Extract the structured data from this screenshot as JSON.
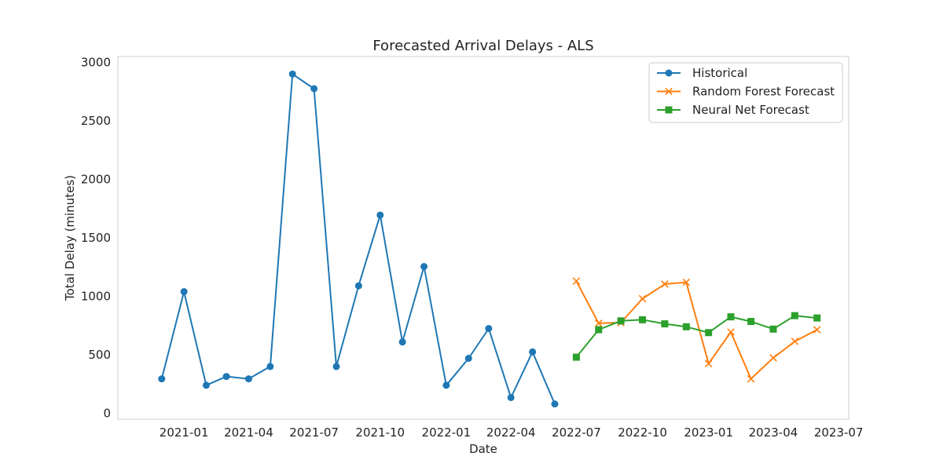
{
  "chart_data": {
    "type": "line",
    "title": "Forecasted Arrival Delays - ALS",
    "xlabel": "Date",
    "ylabel": "Total Delay (minutes)",
    "x_range": [
      "2020-10-01",
      "2023-07-15"
    ],
    "ylim": [
      -50,
      3050
    ],
    "x_ticks": [
      {
        "date": "2021-01-01",
        "label": "2021-01"
      },
      {
        "date": "2021-04-01",
        "label": "2021-04"
      },
      {
        "date": "2021-07-01",
        "label": "2021-07"
      },
      {
        "date": "2021-10-01",
        "label": "2021-10"
      },
      {
        "date": "2022-01-01",
        "label": "2022-01"
      },
      {
        "date": "2022-04-01",
        "label": "2022-04"
      },
      {
        "date": "2022-07-01",
        "label": "2022-07"
      },
      {
        "date": "2022-10-01",
        "label": "2022-10"
      },
      {
        "date": "2023-01-01",
        "label": "2023-01"
      },
      {
        "date": "2023-04-01",
        "label": "2023-04"
      },
      {
        "date": "2023-07-01",
        "label": "2023-07"
      }
    ],
    "y_ticks": [
      0,
      500,
      1000,
      1500,
      2000,
      2500,
      3000
    ],
    "grid": false,
    "legend_position": "top-right",
    "series": [
      {
        "name": "Historical",
        "color": "#1f77b4",
        "marker": "circle",
        "points": [
          {
            "x": "2020-12-01",
            "y": 295
          },
          {
            "x": "2021-01-01",
            "y": 1040
          },
          {
            "x": "2021-02-01",
            "y": 240
          },
          {
            "x": "2021-03-01",
            "y": 315
          },
          {
            "x": "2021-04-01",
            "y": 295
          },
          {
            "x": "2021-05-01",
            "y": 400
          },
          {
            "x": "2021-06-01",
            "y": 2900
          },
          {
            "x": "2021-07-01",
            "y": 2775
          },
          {
            "x": "2021-08-01",
            "y": 400
          },
          {
            "x": "2021-09-01",
            "y": 1090
          },
          {
            "x": "2021-10-01",
            "y": 1695
          },
          {
            "x": "2021-11-01",
            "y": 610
          },
          {
            "x": "2021-12-01",
            "y": 1255
          },
          {
            "x": "2022-01-01",
            "y": 240
          },
          {
            "x": "2022-02-01",
            "y": 470
          },
          {
            "x": "2022-03-01",
            "y": 725
          },
          {
            "x": "2022-04-01",
            "y": 135
          },
          {
            "x": "2022-05-01",
            "y": 525
          },
          {
            "x": "2022-06-01",
            "y": 80
          }
        ]
      },
      {
        "name": "Random Forest Forecast",
        "color": "#ff7f0e",
        "marker": "x",
        "points": [
          {
            "x": "2022-07-01",
            "y": 1130
          },
          {
            "x": "2022-08-01",
            "y": 770
          },
          {
            "x": "2022-09-01",
            "y": 775
          },
          {
            "x": "2022-10-01",
            "y": 980
          },
          {
            "x": "2022-11-01",
            "y": 1105
          },
          {
            "x": "2022-12-01",
            "y": 1120
          },
          {
            "x": "2023-01-01",
            "y": 425
          },
          {
            "x": "2023-02-01",
            "y": 695
          },
          {
            "x": "2023-03-01",
            "y": 295
          },
          {
            "x": "2023-04-01",
            "y": 475
          },
          {
            "x": "2023-05-01",
            "y": 615
          },
          {
            "x": "2023-06-01",
            "y": 715
          }
        ]
      },
      {
        "name": "Neural Net Forecast",
        "color": "#2ca02c",
        "marker": "square",
        "points": [
          {
            "x": "2022-07-01",
            "y": 480
          },
          {
            "x": "2022-08-01",
            "y": 715
          },
          {
            "x": "2022-09-01",
            "y": 790
          },
          {
            "x": "2022-10-01",
            "y": 800
          },
          {
            "x": "2022-11-01",
            "y": 765
          },
          {
            "x": "2022-12-01",
            "y": 740
          },
          {
            "x": "2023-01-01",
            "y": 690
          },
          {
            "x": "2023-02-01",
            "y": 825
          },
          {
            "x": "2023-03-01",
            "y": 785
          },
          {
            "x": "2023-04-01",
            "y": 720
          },
          {
            "x": "2023-05-01",
            "y": 835
          },
          {
            "x": "2023-06-01",
            "y": 815
          }
        ]
      }
    ]
  }
}
